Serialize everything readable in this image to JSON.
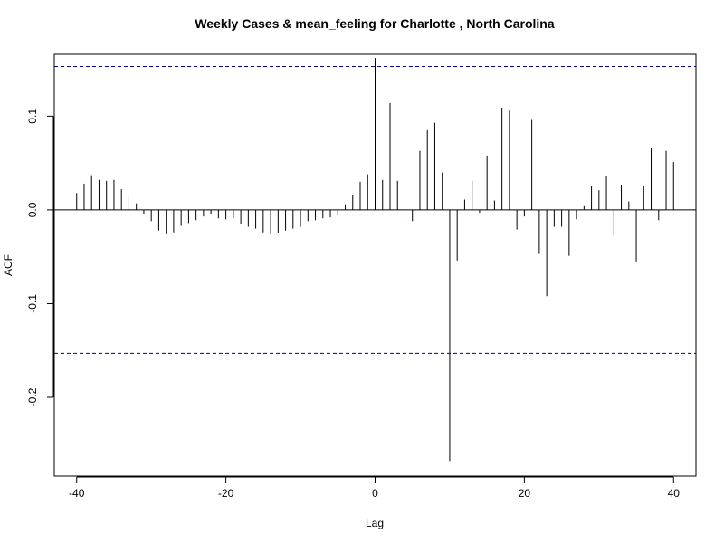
{
  "chart_data": {
    "type": "bar",
    "title": "Weekly Cases & mean_feeling for Charlotte , North Carolina",
    "xlabel": "Lag",
    "ylabel": "ACF",
    "xlim": [
      -43,
      43
    ],
    "ylim": [
      -0.284,
      0.166
    ],
    "x_ticks": [
      -40,
      -20,
      0,
      20,
      40
    ],
    "x_tick_labels": [
      "-40",
      "-20",
      "0",
      "20",
      "40"
    ],
    "y_ticks": [
      -0.2,
      -0.1,
      0.0,
      0.1
    ],
    "y_tick_labels": [
      "-0.2",
      "-0.1",
      "0.0",
      "0.1"
    ],
    "confidence_band": 0.153,
    "confidence_color": "#00008B",
    "zero_line": true,
    "grid": false,
    "lags": [
      -40,
      -39,
      -38,
      -37,
      -36,
      -35,
      -34,
      -33,
      -32,
      -31,
      -30,
      -29,
      -28,
      -27,
      -26,
      -25,
      -24,
      -23,
      -22,
      -21,
      -20,
      -19,
      -18,
      -17,
      -16,
      -15,
      -14,
      -13,
      -12,
      -11,
      -10,
      -9,
      -8,
      -7,
      -6,
      -5,
      -4,
      -3,
      -2,
      -1,
      0,
      1,
      2,
      3,
      4,
      5,
      6,
      7,
      8,
      9,
      10,
      11,
      12,
      13,
      14,
      15,
      16,
      17,
      18,
      19,
      20,
      21,
      22,
      23,
      24,
      25,
      26,
      27,
      28,
      29,
      30,
      31,
      32,
      33,
      34,
      35,
      36,
      37,
      38,
      39,
      40
    ],
    "acf": [
      0.018,
      0.028,
      0.037,
      0.032,
      0.031,
      0.032,
      0.022,
      0.014,
      0.007,
      -0.004,
      -0.012,
      -0.022,
      -0.026,
      -0.024,
      -0.017,
      -0.014,
      -0.011,
      -0.007,
      -0.005,
      -0.009,
      -0.01,
      -0.009,
      -0.015,
      -0.018,
      -0.02,
      -0.024,
      -0.026,
      -0.025,
      -0.022,
      -0.02,
      -0.018,
      -0.012,
      -0.011,
      -0.009,
      -0.008,
      -0.006,
      0.006,
      0.016,
      0.03,
      0.038,
      0.162,
      0.032,
      0.114,
      0.031,
      -0.011,
      -0.012,
      0.063,
      0.085,
      0.093,
      0.04,
      -0.268,
      -0.054,
      0.011,
      0.031,
      -0.003,
      0.058,
      0.01,
      0.109,
      0.106,
      -0.021,
      -0.007,
      0.096,
      -0.047,
      -0.092,
      -0.018,
      -0.018,
      -0.049,
      -0.01,
      0.004,
      0.025,
      0.021,
      0.036,
      -0.027,
      0.027,
      0.009,
      -0.055,
      0.025,
      0.066,
      -0.011,
      0.063,
      0.051
    ]
  }
}
